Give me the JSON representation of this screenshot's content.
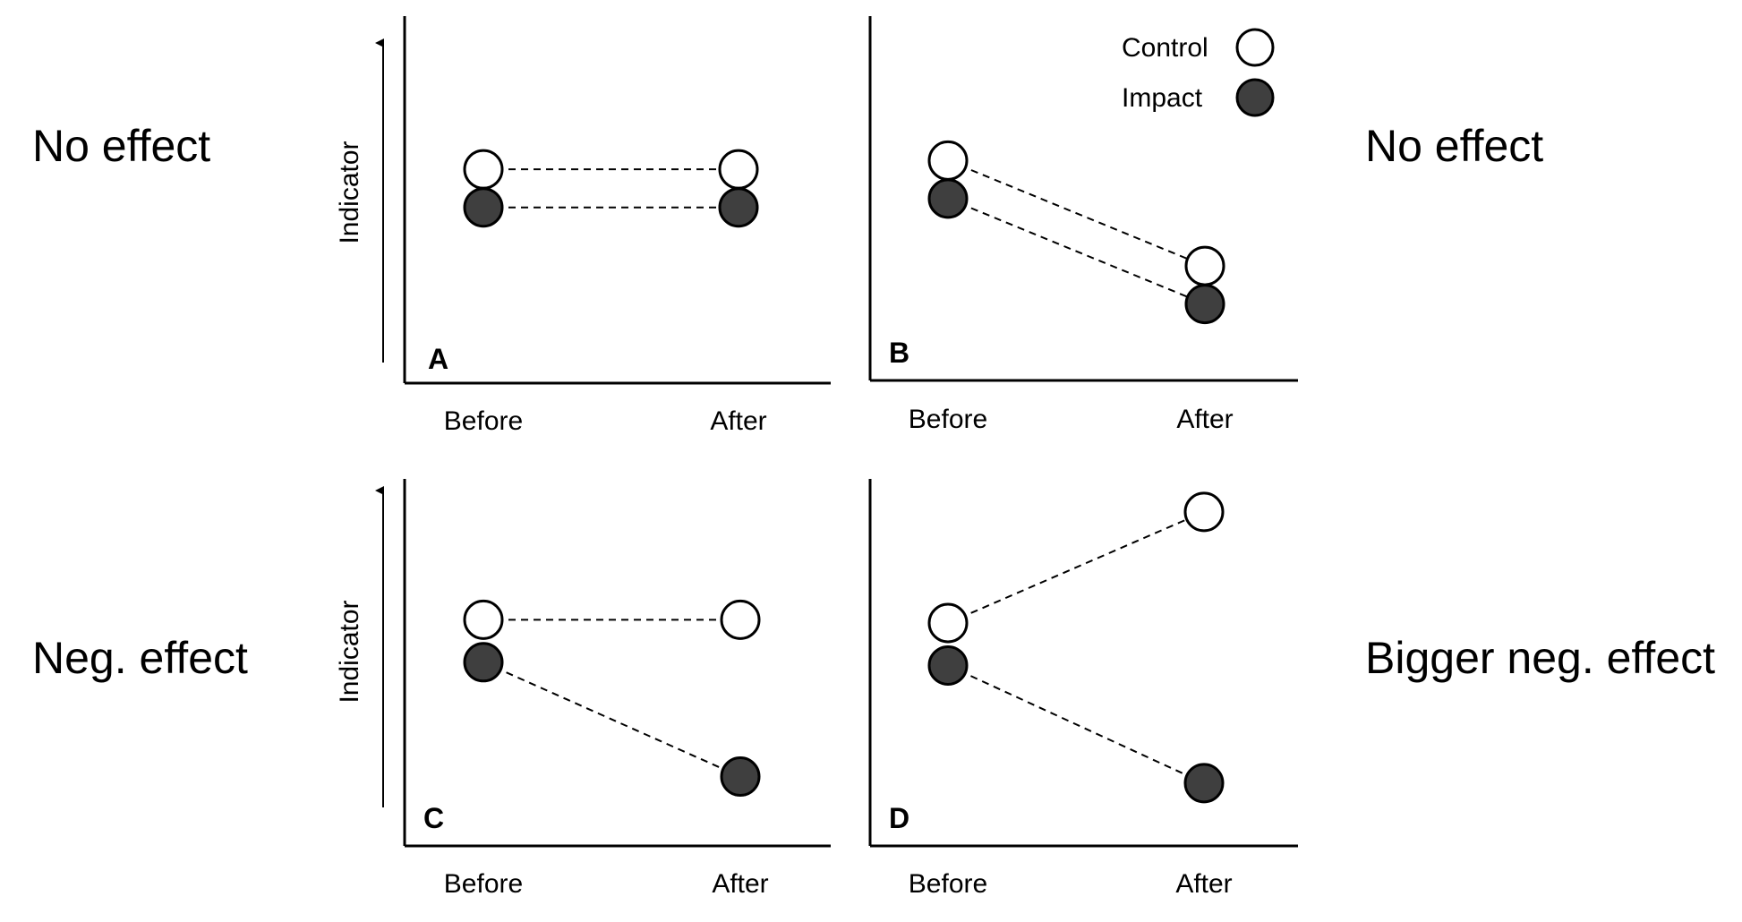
{
  "colors": {
    "control_fill": "#ffffff",
    "impact_fill": "#3f3f3f",
    "stroke": "#000000"
  },
  "legend": {
    "control_label": "Control",
    "impact_label": "Impact"
  },
  "side_labels": {
    "a": "No effect",
    "b": "No effect",
    "c": "Neg. effect",
    "d": "Bigger neg. effect"
  },
  "chart_data": [
    {
      "type": "line",
      "panel": "A",
      "categories": [
        "Before",
        "After"
      ],
      "ylabel": "Indicator",
      "ylim": [
        0,
        10
      ],
      "series": [
        {
          "name": "Control",
          "values": [
            6.6,
            6.6
          ]
        },
        {
          "name": "Impact",
          "values": [
            5.3,
            5.3
          ]
        }
      ]
    },
    {
      "type": "line",
      "panel": "B",
      "categories": [
        "Before",
        "After"
      ],
      "ylabel": "",
      "ylim": [
        0,
        10
      ],
      "series": [
        {
          "name": "Control",
          "values": [
            6.9,
            3.3
          ]
        },
        {
          "name": "Impact",
          "values": [
            5.6,
            2.0
          ]
        }
      ]
    },
    {
      "type": "line",
      "panel": "C",
      "categories": [
        "Before",
        "After"
      ],
      "ylabel": "Indicator",
      "ylim": [
        0,
        10
      ],
      "series": [
        {
          "name": "Control",
          "values": [
            6.1,
            6.1
          ]
        },
        {
          "name": "Impact",
          "values": [
            4.8,
            1.3
          ]
        }
      ]
    },
    {
      "type": "line",
      "panel": "D",
      "categories": [
        "Before",
        "After"
      ],
      "ylabel": "",
      "ylim": [
        0,
        10
      ],
      "series": [
        {
          "name": "Control",
          "values": [
            6.0,
            9.4
          ]
        },
        {
          "name": "Impact",
          "values": [
            4.7,
            1.1
          ]
        }
      ]
    }
  ]
}
